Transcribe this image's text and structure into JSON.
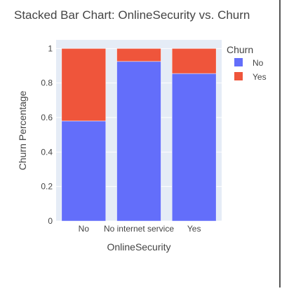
{
  "chart_data": {
    "type": "bar",
    "stacked": true,
    "title": "Stacked Bar Chart: OnlineSecurity vs. Churn",
    "xlabel": "OnlineSecurity",
    "ylabel": "Churn Percentage",
    "categories": [
      "No",
      "No internet service",
      "Yes"
    ],
    "series": [
      {
        "name": "No",
        "color": "#636efa",
        "values": [
          0.58,
          0.925,
          0.855
        ]
      },
      {
        "name": "Yes",
        "color": "#ef553b",
        "values": [
          0.42,
          0.075,
          0.145
        ]
      }
    ],
    "ylim": [
      0,
      1.05
    ],
    "yticks": [
      0,
      0.2,
      0.4,
      0.6,
      0.8,
      1
    ],
    "ytick_labels": [
      "0",
      "0.2",
      "0.4",
      "0.6",
      "0.8",
      "1"
    ],
    "legend": {
      "title": "Churn",
      "placement": "top-right"
    },
    "grid": true,
    "plot_background": "#e5ecf6"
  }
}
